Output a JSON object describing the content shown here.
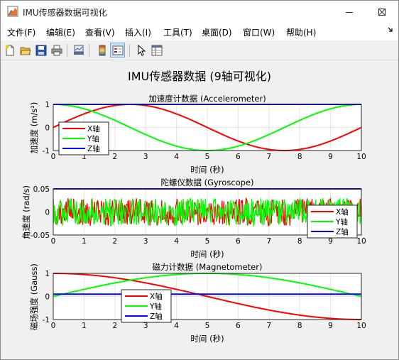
{
  "window": {
    "title": "IMU传感器数据可视化",
    "controls": [
      "minimize-icon",
      "maximize-icon",
      "close-icon"
    ]
  },
  "menu": {
    "items": [
      {
        "label": "文件(F)"
      },
      {
        "label": "编辑(E)"
      },
      {
        "label": "查看(V)"
      },
      {
        "label": "插入(I)"
      },
      {
        "label": "工具(T)"
      },
      {
        "label": "桌面(D)"
      },
      {
        "label": "窗口(W)"
      },
      {
        "label": "帮助(H)"
      }
    ],
    "overflow_icon": "menu-overflow-arrow-icon"
  },
  "toolbar": {
    "icons": [
      "new-figure-icon",
      "open-file-icon",
      "save-icon",
      "print-icon",
      "link-plot-icon",
      "insert-colorbar-icon",
      "insert-legend-icon",
      "pointer-icon",
      "property-inspector-icon"
    ]
  },
  "figure": {
    "suptitle": "IMU传感器数据 (9轴可视化)"
  },
  "colors": {
    "x": "#ff0000",
    "y": "#00ff00",
    "z": "#0000ff"
  },
  "chart_data": [
    {
      "type": "line",
      "title": "加速度计数据 (Accelerometer)",
      "xlabel": "时间 (秒)",
      "ylabel": "加速度 (m/s²)",
      "xlim": [
        0,
        10
      ],
      "ylim": [
        -1,
        1
      ],
      "xticks": [
        "0",
        "1",
        "2",
        "3",
        "4",
        "5",
        "6",
        "7",
        "8",
        "9",
        "10"
      ],
      "yticks": [
        "-1",
        "0",
        "1"
      ],
      "grid": true,
      "legend": "bottom-left",
      "series": [
        {
          "name": "X轴",
          "expr": "sin(2πt/10)",
          "x": [
            0,
            1,
            2,
            2.5,
            3,
            4,
            5,
            6,
            7,
            7.5,
            8,
            9,
            10
          ],
          "y": [
            0,
            0.59,
            0.95,
            1,
            0.95,
            0.59,
            0,
            -0.59,
            -0.95,
            -1,
            -0.95,
            -0.59,
            0
          ]
        },
        {
          "name": "Y轴",
          "expr": "cos(2πt/10)",
          "x": [
            0,
            1,
            2,
            2.5,
            3,
            4,
            5,
            6,
            7,
            7.5,
            8,
            9,
            10
          ],
          "y": [
            1,
            0.81,
            0.31,
            0,
            -0.31,
            -0.81,
            -1,
            -0.81,
            -0.31,
            0,
            0.31,
            0.81,
            1
          ]
        },
        {
          "name": "Z轴",
          "expr": "1",
          "x": [
            0,
            10
          ],
          "y": [
            1,
            1
          ]
        }
      ]
    },
    {
      "type": "line",
      "title": "陀螺仪数据 (Gyroscope)",
      "xlabel": "时间 (秒)",
      "ylabel": "角速度 (rad/s)",
      "xlim": [
        0,
        10
      ],
      "ylim": [
        -0.05,
        0.05
      ],
      "xticks": [
        "0",
        "1",
        "2",
        "3",
        "4",
        "5",
        "6",
        "7",
        "8",
        "9",
        "10"
      ],
      "yticks": [
        "-0.05",
        "0",
        "0.05"
      ],
      "grid": true,
      "legend": "bottom-right",
      "series": [
        {
          "name": "X轴",
          "noise_amplitude": 0.03,
          "center": 0
        },
        {
          "name": "Y轴",
          "noise_amplitude": 0.03,
          "center": 0
        },
        {
          "name": "Z轴",
          "x": [
            0,
            10
          ],
          "y": [
            0.05,
            0.05
          ]
        }
      ]
    },
    {
      "type": "line",
      "title": "磁力计数据 (Magnetometer)",
      "xlabel": "时间 (秒)",
      "ylabel": "磁场强度 (Gauss)",
      "xlim": [
        0,
        10
      ],
      "ylim": [
        -1,
        1
      ],
      "xticks": [
        "0",
        "1",
        "2",
        "3",
        "4",
        "5",
        "6",
        "7",
        "8",
        "9",
        "10"
      ],
      "yticks": [
        "-1",
        "0",
        "1"
      ],
      "grid": true,
      "legend": "bottom-center",
      "series": [
        {
          "name": "X轴",
          "expr": "cos(πt/10)",
          "x": [
            0,
            1,
            2,
            3,
            4,
            5,
            6,
            7,
            8,
            9,
            10
          ],
          "y": [
            1,
            0.95,
            0.81,
            0.59,
            0.31,
            0,
            -0.31,
            -0.59,
            -0.81,
            -0.95,
            -1
          ]
        },
        {
          "name": "Y轴",
          "expr": "sin(πt/10)",
          "x": [
            0,
            1,
            2,
            3,
            4,
            5,
            6,
            7,
            8,
            9,
            10
          ],
          "y": [
            0,
            0.31,
            0.59,
            0.81,
            0.95,
            1,
            0.95,
            0.81,
            0.59,
            0.31,
            0
          ]
        },
        {
          "name": "Z轴",
          "x": [
            0,
            10
          ],
          "y": [
            0.1,
            0.1
          ]
        }
      ]
    }
  ]
}
